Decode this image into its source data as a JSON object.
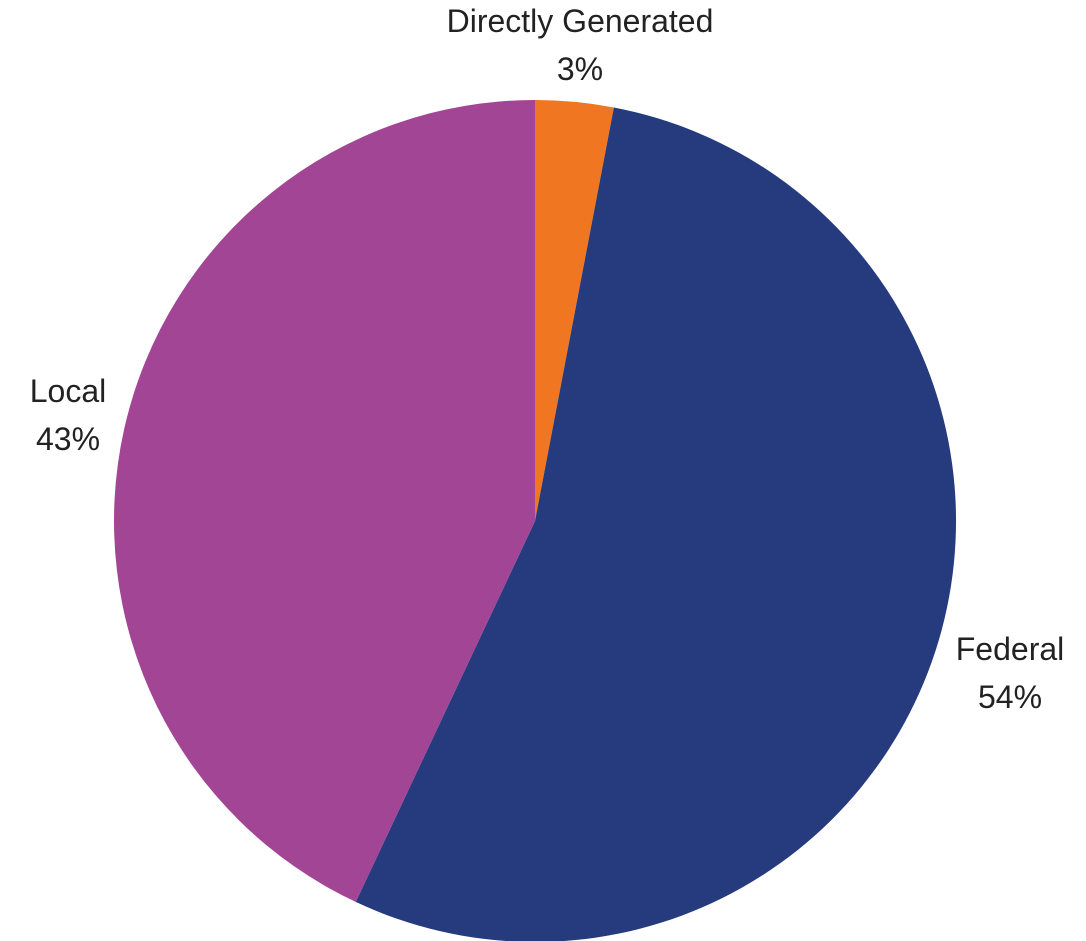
{
  "chart_data": {
    "type": "pie",
    "title": "",
    "slices": [
      {
        "name": "Directly Generated",
        "label": "Directly Generated",
        "value": 3,
        "value_label": "3%",
        "color": "#f07622"
      },
      {
        "name": "Federal",
        "label": "Federal",
        "value": 54,
        "value_label": "54%",
        "color": "#263a7e"
      },
      {
        "name": "Local",
        "label": "Local",
        "value": 43,
        "value_label": "43%",
        "color": "#a24595"
      }
    ],
    "start": "12 o'clock",
    "direction": "clockwise",
    "legend": "none"
  }
}
